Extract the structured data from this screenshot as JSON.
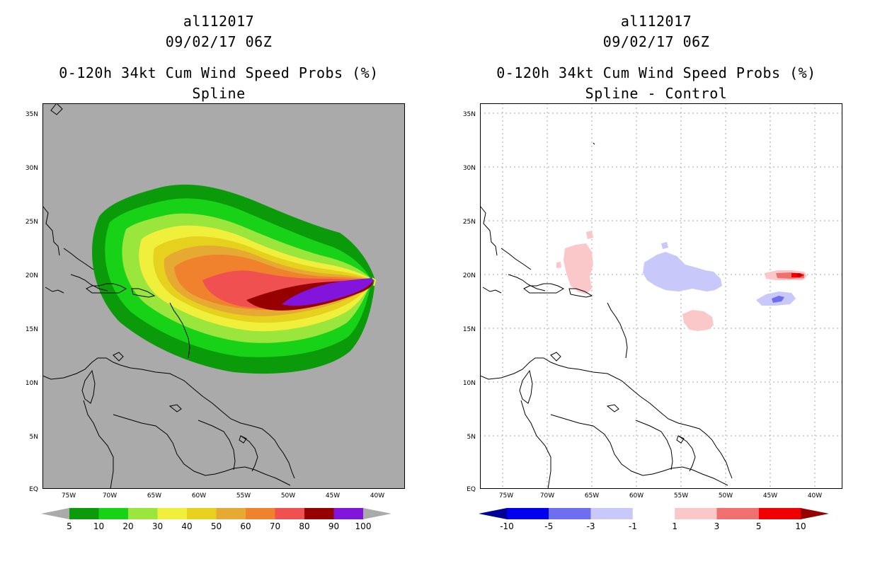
{
  "left": {
    "storm_id": "al112017",
    "datetime": "09/02/17 06Z",
    "product": "0-120h 34kt Cum Wind Speed Probs (%)",
    "subtitle": "Spline",
    "colorbar": {
      "labels": [
        "5",
        "10",
        "20",
        "30",
        "40",
        "50",
        "60",
        "70",
        "80",
        "90",
        "100"
      ],
      "colors": [
        "#0a9a0a",
        "#17d217",
        "#9be63c",
        "#f0f03c",
        "#e6d21e",
        "#e6aa32",
        "#f0822d",
        "#f05050",
        "#960000",
        "#8214dc"
      ],
      "under_color": "#aaaaaa",
      "over_color": "#aaaaaa"
    }
  },
  "right": {
    "storm_id": "al112017",
    "datetime": "09/02/17 06Z",
    "product": "0-120h 34kt Cum Wind Speed Probs (%)",
    "subtitle": "Spline - Control",
    "colorbar": {
      "labels": [
        "-10",
        "-5",
        "-3",
        "-1",
        "1",
        "3",
        "5",
        "10"
      ],
      "colors": [
        "#0000f0",
        "#6e6ef0",
        "#c8c8fa",
        "#ffffff",
        "#fac8c8",
        "#f07070",
        "#f00000"
      ],
      "under_color": "#000096",
      "over_color": "#960000"
    }
  },
  "axes": {
    "lon_labels": [
      "75W",
      "70W",
      "65W",
      "60W",
      "55W",
      "50W",
      "45W",
      "40W"
    ],
    "lat_labels": [
      "35N",
      "30N",
      "25N",
      "20N",
      "15N",
      "10N",
      "5N",
      "EQ"
    ]
  },
  "chart_data": [
    {
      "type": "heatmap",
      "title": "0-120h 34kt Cum Wind Speed Probs (%) - Spline",
      "variable": "34kt cumulative wind speed probability",
      "units": "%",
      "contour_levels": [
        5,
        10,
        20,
        30,
        40,
        50,
        60,
        70,
        80,
        90,
        100
      ],
      "lon_range": [
        -77.5,
        -37.5
      ],
      "lat_range": [
        0,
        36
      ],
      "max_probability_region": {
        "lon": [
          -50.5,
          -41.5
        ],
        "lat": [
          17.5,
          19.8
        ],
        "min_value": 90
      },
      "track_axis_points": [
        {
          "lon": -62,
          "lat": 20.5
        },
        {
          "lon": -56,
          "lat": 18.2
        },
        {
          "lon": -50,
          "lat": 17.8
        },
        {
          "lon": -45,
          "lat": 18.8
        },
        {
          "lon": -41.5,
          "lat": 19.5
        }
      ]
    },
    {
      "type": "heatmap",
      "title": "0-120h 34kt Cum Wind Speed Probs (%) - Spline - Control",
      "variable": "probability difference",
      "units": "%",
      "contour_levels": [
        -10,
        -5,
        -3,
        -1,
        1,
        3,
        5,
        10
      ],
      "lon_range": [
        -77.5,
        -37.5
      ],
      "lat_range": [
        0,
        36
      ],
      "features": [
        {
          "sign": "positive",
          "lon": [
            -67,
            -63.5
          ],
          "lat": [
            18,
            22.5
          ],
          "max_level": 3
        },
        {
          "sign": "negative",
          "lon": [
            -58,
            -51
          ],
          "lat": [
            18.5,
            21.5
          ],
          "min_level": -3
        },
        {
          "sign": "positive",
          "lon": [
            -55,
            -52
          ],
          "lat": [
            15,
            16.5
          ],
          "max_level": 3
        },
        {
          "sign": "positive",
          "lon": [
            -44,
            -41.5
          ],
          "lat": [
            19.6,
            20.2
          ],
          "max_level": 10
        },
        {
          "sign": "negative",
          "lon": [
            -45,
            -42
          ],
          "lat": [
            17.2,
            18.2
          ],
          "min_level": -5
        }
      ]
    }
  ]
}
